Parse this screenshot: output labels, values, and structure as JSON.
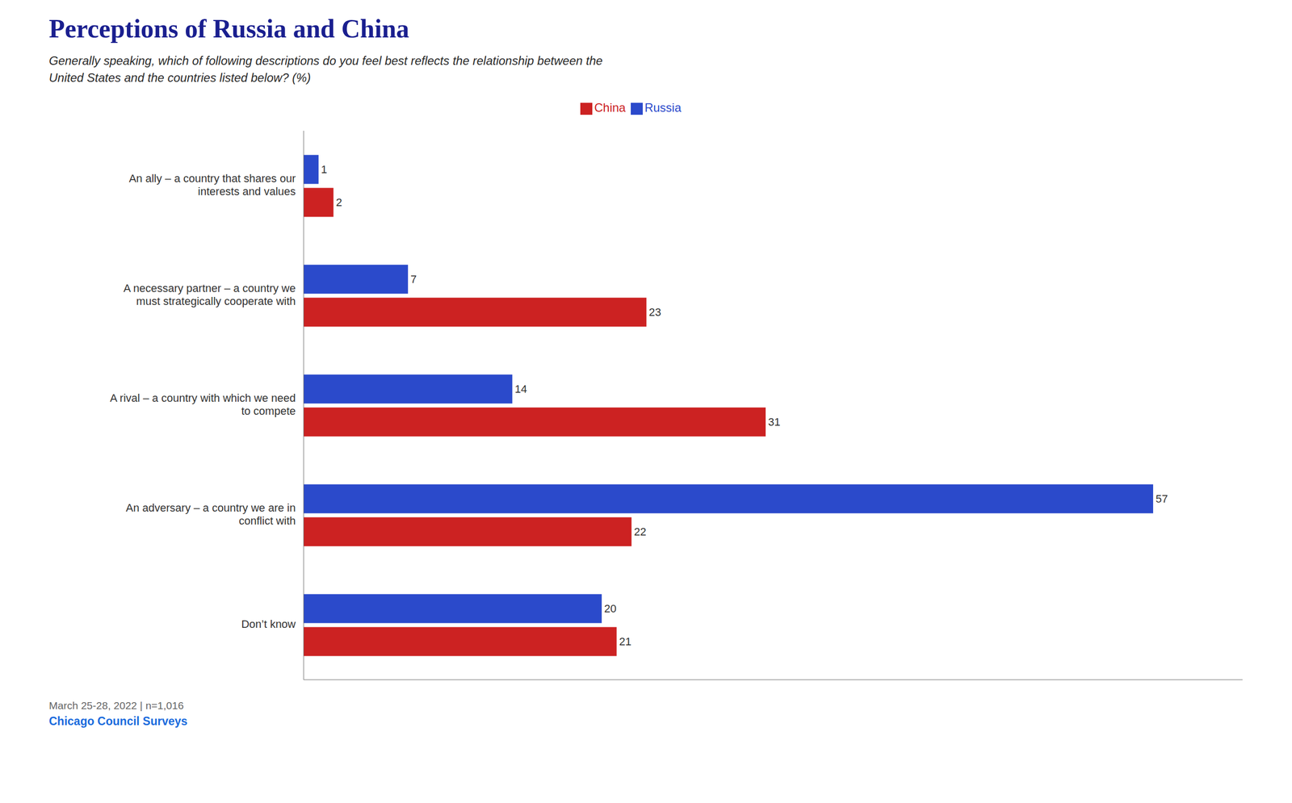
{
  "chart_data": {
    "type": "bar",
    "orientation": "horizontal",
    "title": "Perceptions of Russia and China",
    "subtitle": "Generally speaking, which of following descriptions do you feel best reflects the relationship between the\nUnited States and the countries listed below? (%)",
    "categories": [
      "An ally – a country that shares our\ninterests and values",
      "A necessary partner – a country we\nmust strategically cooperate with",
      "A rival – a country with which we need\nto compete",
      "An adversary – a country we are in\nconflict with",
      "Don’t know"
    ],
    "series": [
      {
        "name": "Russia",
        "color": "#2b4acb",
        "values": [
          1,
          7,
          14,
          57,
          20
        ]
      },
      {
        "name": "China",
        "color": "#cc2222",
        "values": [
          2,
          23,
          31,
          22,
          21
        ]
      }
    ],
    "xlim": [
      0,
      63
    ],
    "tick_labels": "y",
    "data_labels": true,
    "grid": false,
    "annotations": [
      "March 25-28, 2022 | n=1,016",
      "Chicago Council Surveys"
    ]
  }
}
